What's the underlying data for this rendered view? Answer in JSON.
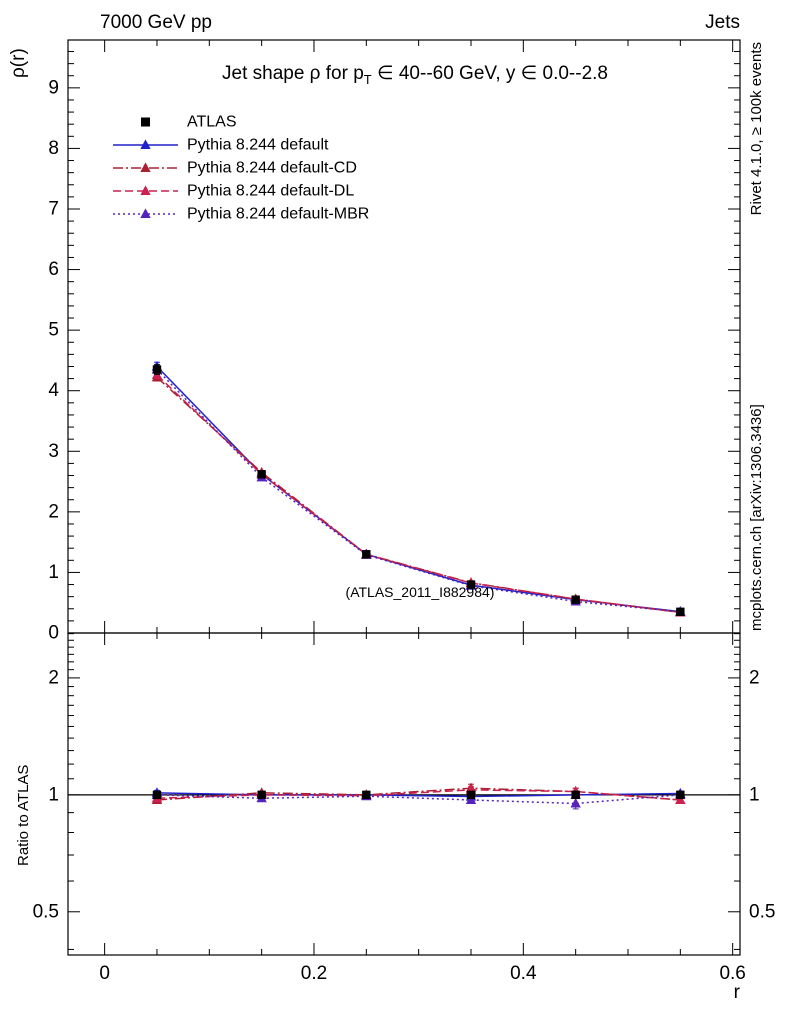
{
  "header": {
    "left": "7000 GeV pp",
    "right": "Jets"
  },
  "title": {
    "pre": "Jet shape ρ for p",
    "sub": "T",
    "post": " ∈ 40--60 GeV, y ∈ 0.0--2.8"
  },
  "watermark": "(ATLAS_2011_I882984)",
  "side_notes": {
    "top": "Rivet 4.1.0, ≥ 100k events",
    "bottom": "mcplots.cern.ch [arXiv:1306.3436]"
  },
  "axes": {
    "y_label": "ρ(r)",
    "ratio_label": "Ratio to ATLAS",
    "x_label": "r"
  },
  "colors": {
    "frame": "#000000",
    "side_note_text": "#666666",
    "watermark_text": "#b0b0b0"
  },
  "chart_data": {
    "type": "line",
    "title": "Jet shape ρ for pT ∈ 40--60 GeV, y ∈ 0.0--2.8",
    "xlabel": "r",
    "ylabel": "ρ(r)",
    "ratio_ylabel": "Ratio to ATLAS",
    "x": [
      0.05,
      0.15,
      0.25,
      0.35,
      0.45,
      0.55
    ],
    "xlim": [
      -0.035,
      0.607
    ],
    "ylim": [
      0,
      9.79
    ],
    "ratio_ylim": [
      0.387,
      2.61
    ],
    "ratio_yscale": "log",
    "x_ticks": [
      {
        "v": 0,
        "label": "0"
      },
      {
        "v": 0.2,
        "label": "0.2"
      },
      {
        "v": 0.4,
        "label": "0.4"
      },
      {
        "v": 0.6,
        "label": "0.6"
      }
    ],
    "y_ticks": [
      {
        "v": 0,
        "label": "0"
      },
      {
        "v": 1,
        "label": "1"
      },
      {
        "v": 2,
        "label": "2"
      },
      {
        "v": 3,
        "label": "3"
      },
      {
        "v": 4,
        "label": "4"
      },
      {
        "v": 5,
        "label": "5"
      },
      {
        "v": 6,
        "label": "6"
      },
      {
        "v": 7,
        "label": "7"
      },
      {
        "v": 8,
        "label": "8"
      },
      {
        "v": 9,
        "label": "9"
      }
    ],
    "ratio_ticks": [
      {
        "v": 0.5,
        "label": "0.5"
      },
      {
        "v": 1,
        "label": "1"
      },
      {
        "v": 2,
        "label": "2"
      }
    ],
    "ratio_reference": 1,
    "series": [
      {
        "name": "ATLAS",
        "color": "#000000",
        "marker": "square",
        "line": "none",
        "values": [
          4.35,
          2.62,
          1.3,
          0.8,
          0.55,
          0.35
        ],
        "errors": [
          0.08,
          0.05,
          0.03,
          0.02,
          0.015,
          0.012
        ],
        "ratio": [
          1,
          1,
          1,
          1,
          1,
          1
        ],
        "ratio_errors": [
          0.012,
          0.01,
          0.008,
          0.01,
          0.012,
          0.015
        ]
      },
      {
        "name": "Pythia 8.244 default",
        "color": "#2222cc",
        "marker": "triangle",
        "line": "solid",
        "values": [
          4.4,
          2.62,
          1.3,
          0.79,
          0.55,
          0.353
        ],
        "errors": [
          0.07,
          0.03,
          0.02,
          0.012,
          0.01,
          0.008
        ],
        "ratio": [
          1.012,
          1.0,
          1.0,
          0.99,
          1.0,
          1.008
        ],
        "ratio_errors": [
          0.015,
          0.008,
          0.008,
          0.01,
          0.012,
          0.015
        ]
      },
      {
        "name": "Pythia 8.244 default-CD",
        "color": "#aa2030",
        "marker": "triangle",
        "line": "dashdot",
        "values": [
          4.22,
          2.65,
          1.3,
          0.83,
          0.56,
          0.34
        ],
        "errors": [
          0.06,
          0.03,
          0.02,
          0.015,
          0.01,
          0.008
        ],
        "ratio": [
          0.97,
          1.012,
          1.0,
          1.04,
          1.02,
          0.97
        ],
        "ratio_errors": [
          0.015,
          0.01,
          0.01,
          0.025,
          0.02,
          0.02
        ]
      },
      {
        "name": "Pythia 8.244 default-DL",
        "color": "#cc2050",
        "marker": "triangle",
        "line": "dashed",
        "values": [
          4.26,
          2.62,
          1.295,
          0.825,
          0.56,
          0.34
        ],
        "errors": [
          0.06,
          0.03,
          0.02,
          0.015,
          0.01,
          0.008
        ],
        "ratio": [
          0.98,
          1.0,
          0.995,
          1.03,
          1.02,
          0.97
        ],
        "ratio_errors": [
          0.015,
          0.01,
          0.01,
          0.02,
          0.02,
          0.02
        ]
      },
      {
        "name": "Pythia 8.244 default-MBR",
        "color": "#5522bb",
        "marker": "triangle",
        "line": "dotted",
        "values": [
          4.35,
          2.57,
          1.29,
          0.78,
          0.52,
          0.35
        ],
        "errors": [
          0.06,
          0.03,
          0.02,
          0.015,
          0.01,
          0.008
        ],
        "ratio": [
          1.0,
          0.98,
          0.992,
          0.97,
          0.95,
          1.0
        ],
        "ratio_errors": [
          0.015,
          0.01,
          0.01,
          0.02,
          0.03,
          0.02
        ]
      }
    ],
    "legend_position": "top-left-inside",
    "grid": false
  }
}
